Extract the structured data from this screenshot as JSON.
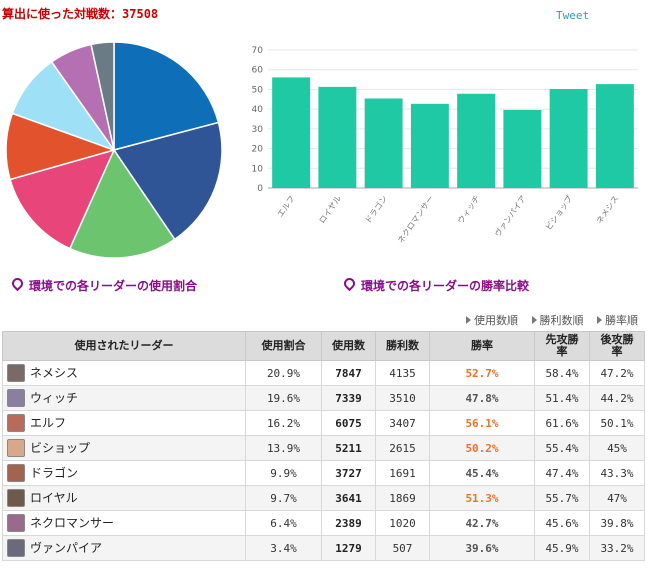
{
  "header": {
    "title_prefix": "算出に使った対戦数：",
    "battle_count": "37508",
    "tweet_label": "Tweet"
  },
  "captions": {
    "pie": "環境での各リーダーの使用割合",
    "bar": "環境での各リーダーの勝率比較"
  },
  "sort_links": [
    "使用数順",
    "勝利数順",
    "勝率順"
  ],
  "table": {
    "headers": [
      "使用されたリーダー",
      "使用割合",
      "使用数",
      "勝利数",
      "勝率",
      "先攻勝率",
      "後攻勝率"
    ],
    "rows": [
      {
        "leader": "ネメシス",
        "share": "20.9%",
        "uses": "7847",
        "wins": "4135",
        "winrate": "52.7%",
        "first": "58.4%",
        "second": "47.2%",
        "avatar": "#7a6a66"
      },
      {
        "leader": "ウィッチ",
        "share": "19.6%",
        "uses": "7339",
        "wins": "3510",
        "winrate": "47.8%",
        "first": "51.4%",
        "second": "44.2%",
        "avatar": "#8a7fa0"
      },
      {
        "leader": "エルフ",
        "share": "16.2%",
        "uses": "6075",
        "wins": "3407",
        "winrate": "56.1%",
        "first": "61.6%",
        "second": "50.1%",
        "avatar": "#b96a5a"
      },
      {
        "leader": "ビショップ",
        "share": "13.9%",
        "uses": "5211",
        "wins": "2615",
        "winrate": "50.2%",
        "first": "55.4%",
        "second": "45%",
        "avatar": "#d6a98a"
      },
      {
        "leader": "ドラゴン",
        "share": "9.9%",
        "uses": "3727",
        "wins": "1691",
        "winrate": "45.4%",
        "first": "47.4%",
        "second": "43.3%",
        "avatar": "#a3644d"
      },
      {
        "leader": "ロイヤル",
        "share": "9.7%",
        "uses": "3641",
        "wins": "1869",
        "winrate": "51.3%",
        "first": "55.7%",
        "second": "47%",
        "avatar": "#6e5a4a"
      },
      {
        "leader": "ネクロマンサー",
        "share": "6.4%",
        "uses": "2389",
        "wins": "1020",
        "winrate": "42.7%",
        "first": "45.6%",
        "second": "39.8%",
        "avatar": "#9a6a8a"
      },
      {
        "leader": "ヴァンパイア",
        "share": "3.4%",
        "uses": "1279",
        "wins": "507",
        "winrate": "39.6%",
        "first": "45.9%",
        "second": "33.2%",
        "avatar": "#6a6a7a"
      }
    ]
  },
  "colors": {
    "winrate_high": "#e8742a",
    "winrate_low": "#555555",
    "bar": "#1ec9a4"
  },
  "chart_data": [
    {
      "type": "pie",
      "categories": [
        "ネメシス",
        "ウィッチ",
        "エルフ",
        "ビショップ",
        "ドラゴン",
        "ロイヤル",
        "ネクロマンサー",
        "ヴァンパイア"
      ],
      "values": [
        20.9,
        19.6,
        16.2,
        13.9,
        9.9,
        9.7,
        6.4,
        3.4
      ],
      "colors": [
        "#0e6fb8",
        "#2f5597",
        "#6cc46e",
        "#e8467a",
        "#e2522d",
        "#9ee0f5",
        "#b56fb3",
        "#6b7b86"
      ]
    },
    {
      "type": "bar",
      "categories": [
        "エルフ",
        "ロイヤル",
        "ドラゴン",
        "ネクロマンサー",
        "ウィッチ",
        "ヴァンパイア",
        "ビショップ",
        "ネメシス"
      ],
      "values": [
        56.1,
        51.3,
        45.4,
        42.7,
        47.8,
        39.6,
        50.2,
        52.7
      ],
      "ylim": [
        0,
        70
      ],
      "yticks": [
        0,
        10,
        20,
        30,
        40,
        50,
        60,
        70
      ],
      "grid": true
    }
  ]
}
